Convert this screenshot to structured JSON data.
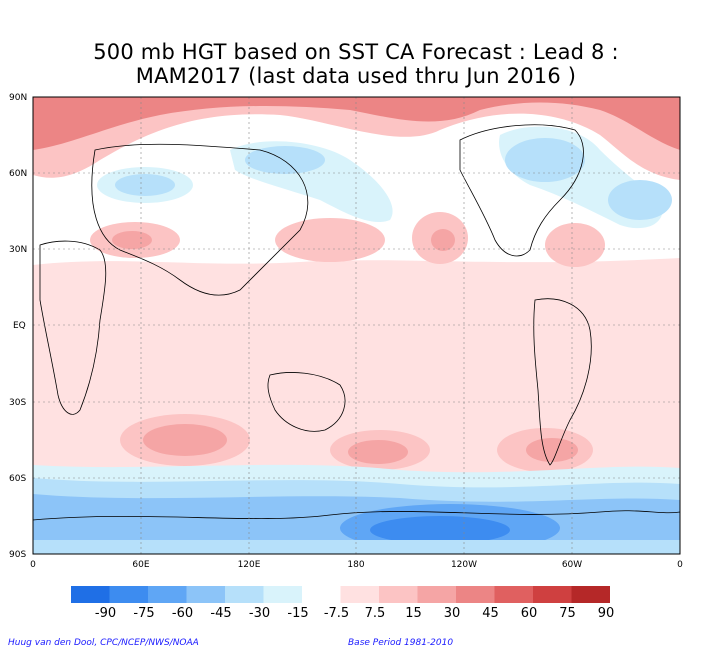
{
  "title_line1": "500 mb HGT based on SST CA Forecast : Lead 8 :",
  "title_line2": "MAM2017 (last data used thru Jun 2016 )",
  "lat_labels": [
    "90N",
    "60N",
    "30N",
    "EQ",
    "30S",
    "60S",
    "90S"
  ],
  "lon_labels": [
    "0",
    "60E",
    "120E",
    "180",
    "120W",
    "60W",
    "0"
  ],
  "colorbar": {
    "labels": [
      "-90",
      "-75",
      "-60",
      "-45",
      "-30",
      "-15",
      "-7.5",
      "7.5",
      "15",
      "30",
      "45",
      "60",
      "75",
      "90"
    ],
    "colors": [
      "#1f6fe6",
      "#3d8cf0",
      "#5fa6f5",
      "#8cc4f8",
      "#b6e0fa",
      "#d9f3fb",
      "#ffffff",
      "#ffe1e1",
      "#fcc4c4",
      "#f5a5a5",
      "#ec8585",
      "#e06060",
      "#cf4040",
      "#b52828"
    ]
  },
  "credit_left": "Huug van den Dool, CPC/NCEP/NWS/NOAA",
  "credit_right": "Base Period 1981-2010"
}
